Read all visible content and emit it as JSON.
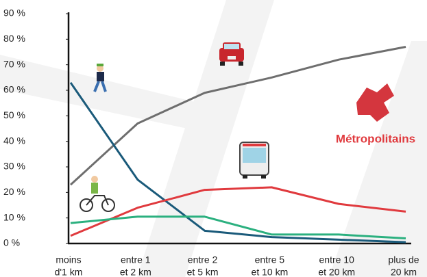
{
  "chart_data": {
    "type": "line",
    "categories": [
      [
        "moins",
        "d'1 km"
      ],
      [
        "entre 1",
        "et 2 km"
      ],
      [
        "entre 2",
        "et 5 km"
      ],
      [
        "entre 5",
        "et 10 km"
      ],
      [
        "entre 10",
        "et 20 km"
      ],
      [
        "plus de",
        "20 km"
      ]
    ],
    "series": [
      {
        "color": "#6e6e6e",
        "values": [
          23,
          47,
          59,
          65,
          72,
          77
        ]
      },
      {
        "color": "#1a5a7a",
        "values": [
          63,
          25,
          5,
          2.5,
          1.5,
          0.5
        ]
      },
      {
        "color": "#e03a3e",
        "values": [
          3,
          14,
          21,
          22,
          15.5,
          12.5
        ]
      },
      {
        "color": "#2bb07f",
        "values": [
          8,
          10.5,
          10.5,
          3.5,
          3.5,
          2
        ]
      }
    ],
    "ylim": [
      0,
      90
    ],
    "yticks": [
      {
        "value": 0,
        "label": "0 %"
      },
      {
        "value": 10,
        "label": "10 %"
      },
      {
        "value": 20,
        "label": "20 %"
      },
      {
        "value": 30,
        "label": "30 %"
      },
      {
        "value": 40,
        "label": "40 %"
      },
      {
        "value": 50,
        "label": "50 %"
      },
      {
        "value": 60,
        "label": "60 %"
      },
      {
        "value": 70,
        "label": "70 %"
      },
      {
        "value": 80,
        "label": "80 %"
      },
      {
        "value": 90,
        "label": "90 %"
      }
    ],
    "annotations": [
      "Métropolitains"
    ]
  }
}
